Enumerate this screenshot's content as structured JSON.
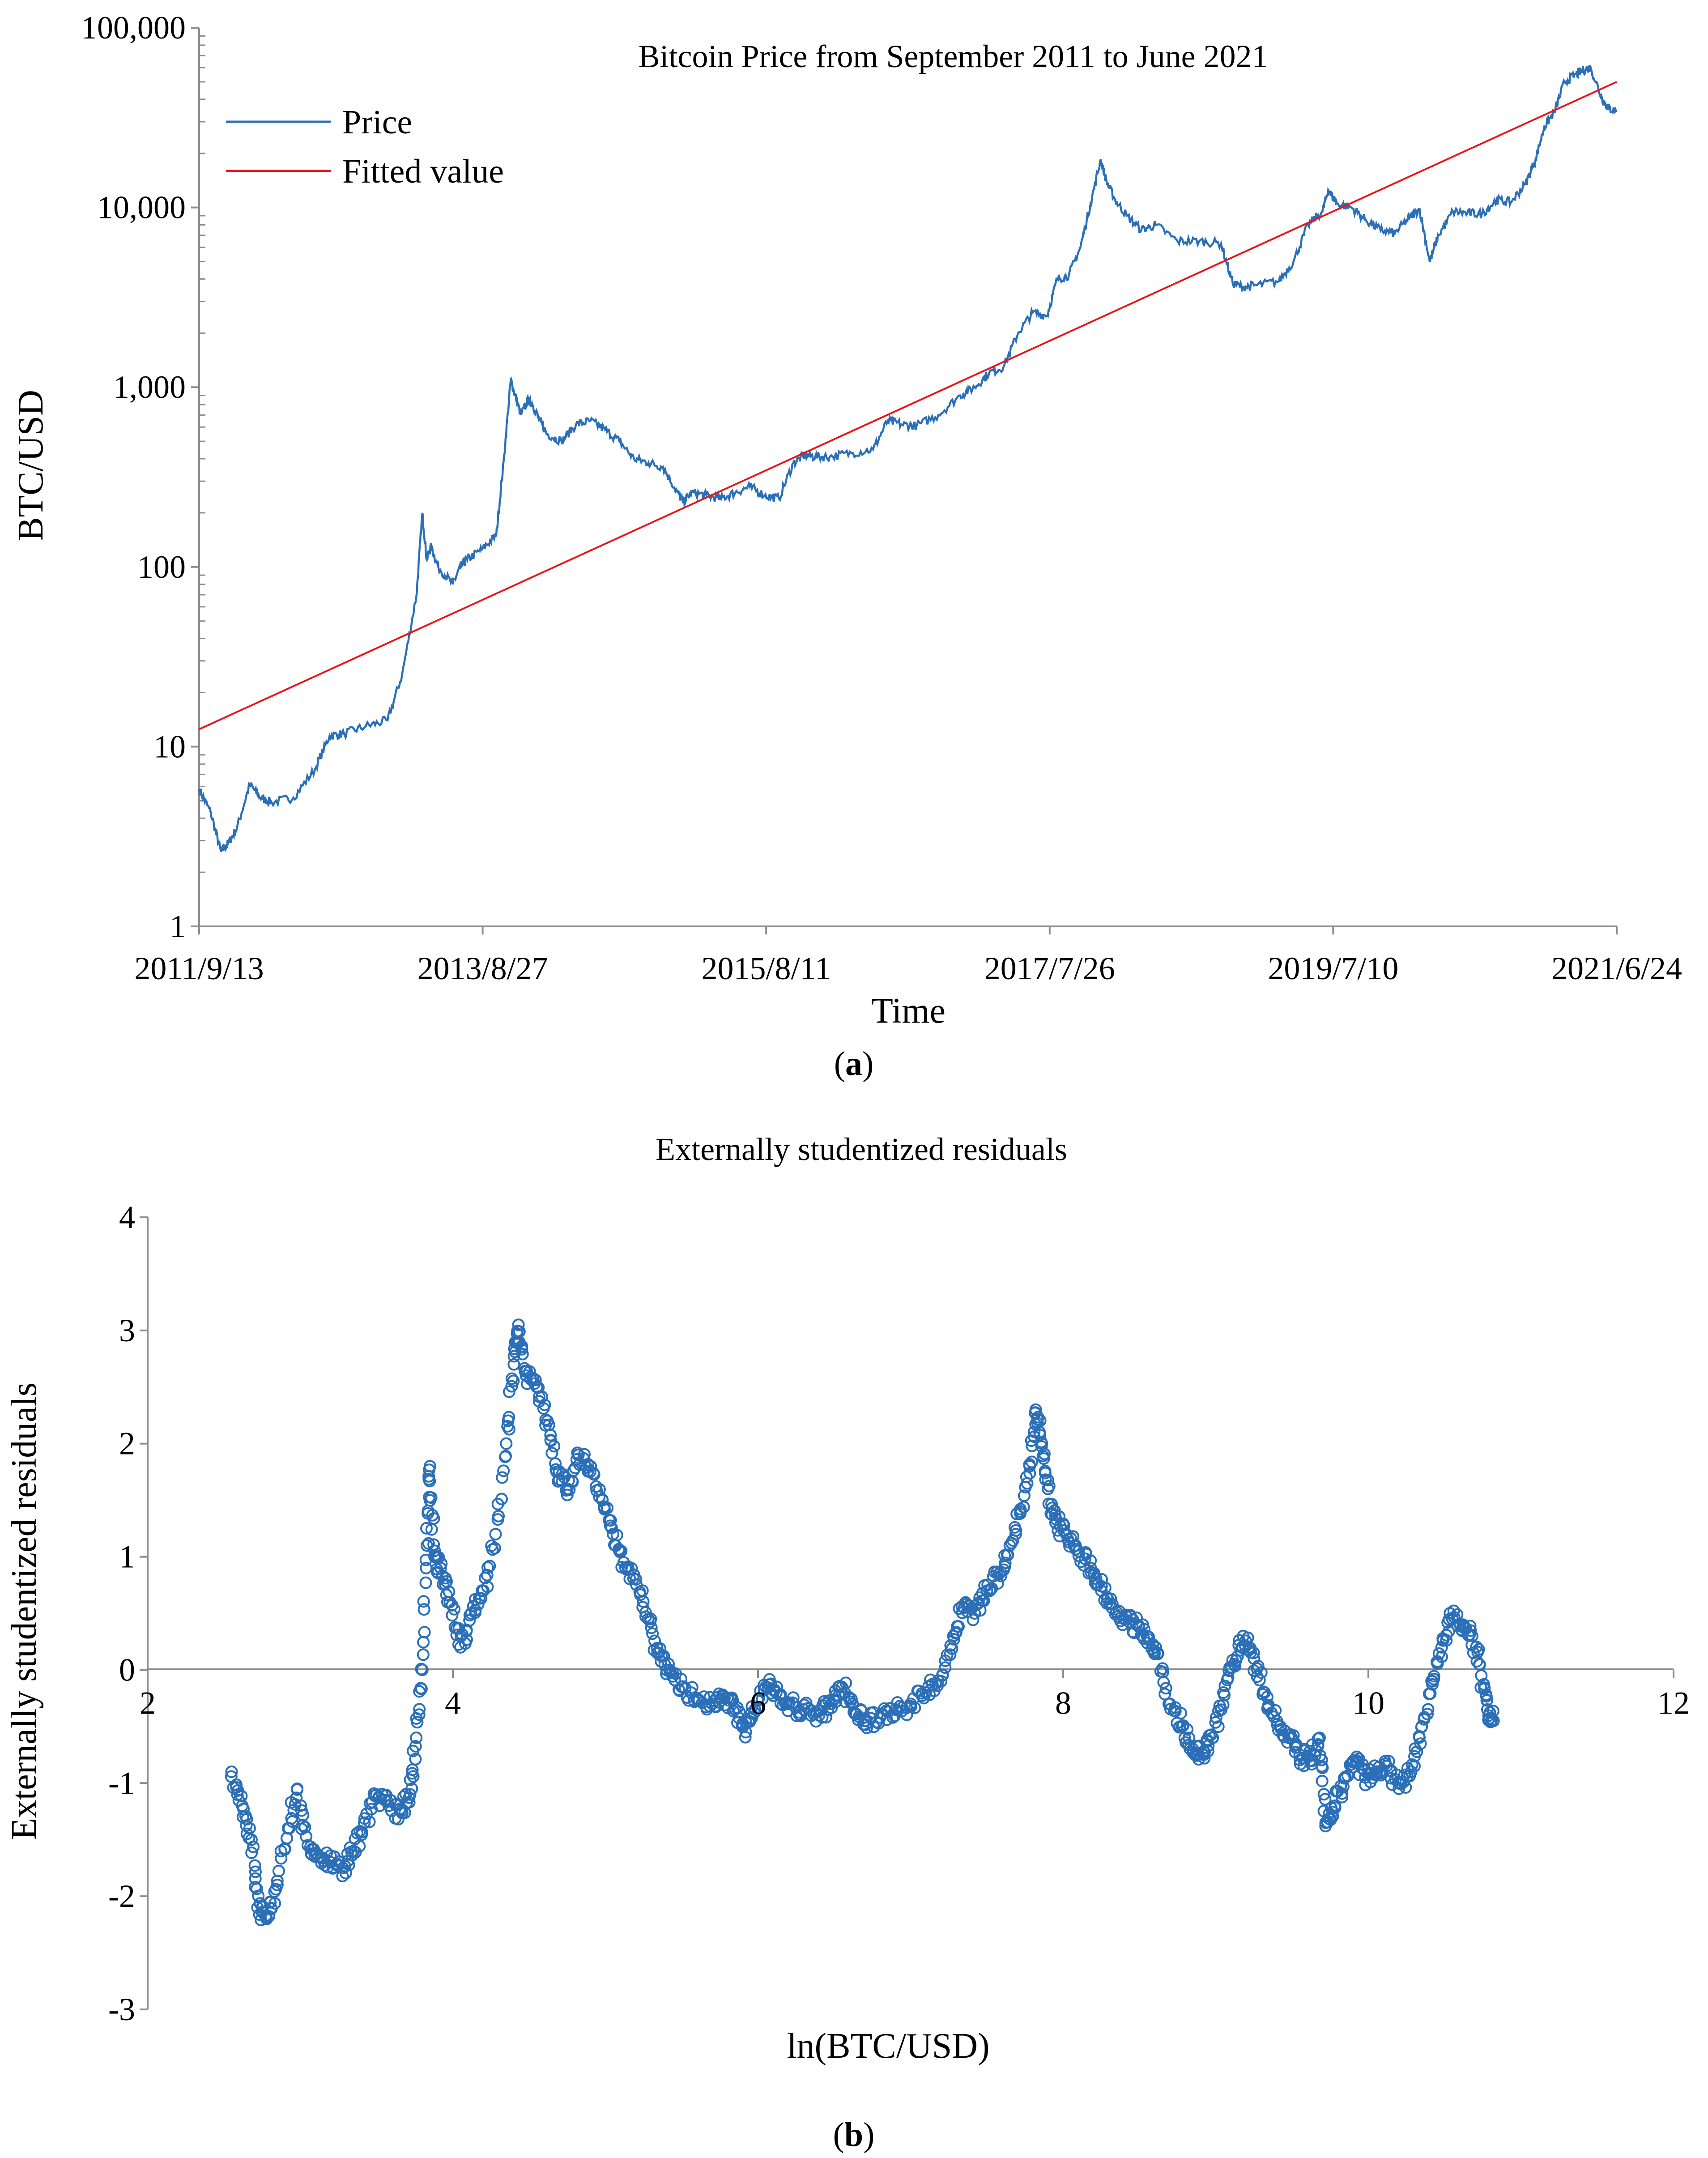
{
  "chart_data": [
    {
      "type": "line",
      "title": "Bitcoin Price from September 2011 to June 2021",
      "xlabel": "Time",
      "ylabel": "BTC/USD",
      "yscale": "log10",
      "ylim": [
        1,
        100000
      ],
      "y_ticks": [
        1,
        10,
        100,
        1000,
        10000,
        100000
      ],
      "y_tick_labels": [
        "1",
        "10",
        "100",
        "1,000",
        "10,000",
        "100,000"
      ],
      "x_range": [
        "2011-09-13",
        "2021-06-24"
      ],
      "x_tick_labels": [
        "2011/9/13",
        "2013/8/27",
        "2015/8/11",
        "2017/7/26",
        "2019/7/10",
        "2021/6/24"
      ],
      "legend": [
        "Price",
        "Fitted value"
      ],
      "legend_position": "top-left",
      "caption_letter": "a",
      "series": [
        {
          "name": "Price",
          "color": "#2a6fb7",
          "x_years": [
            2011.7,
            2011.78,
            2011.85,
            2011.9,
            2011.96,
            2012.05,
            2012.12,
            2012.2,
            2012.35,
            2012.5,
            2012.6,
            2012.7,
            2012.85,
            2013.0,
            2013.1,
            2013.2,
            2013.24,
            2013.27,
            2013.3,
            2013.35,
            2013.45,
            2013.5,
            2013.55,
            2013.65,
            2013.75,
            2013.8,
            2013.85,
            2013.88,
            2013.92,
            2013.97,
            2014.0,
            2014.05,
            2014.1,
            2014.2,
            2014.3,
            2014.4,
            2014.5,
            2014.6,
            2014.7,
            2014.8,
            2014.9,
            2015.0,
            2015.04,
            2015.1,
            2015.2,
            2015.3,
            2015.4,
            2015.5,
            2015.6,
            2015.7,
            2015.8,
            2015.88,
            2015.95,
            2016.05,
            2016.2,
            2016.35,
            2016.45,
            2016.55,
            2016.65,
            2016.8,
            2016.95,
            2017.05,
            2017.15,
            2017.25,
            2017.35,
            2017.45,
            2017.55,
            2017.62,
            2017.7,
            2017.78,
            2017.85,
            2017.92,
            2017.96,
            2018.02,
            2018.1,
            2018.2,
            2018.3,
            2018.45,
            2018.6,
            2018.75,
            2018.83,
            2018.9,
            2019.0,
            2019.15,
            2019.25,
            2019.35,
            2019.45,
            2019.49,
            2019.55,
            2019.65,
            2019.75,
            2019.85,
            2019.95,
            2020.05,
            2020.12,
            2020.19,
            2020.25,
            2020.35,
            2020.45,
            2020.55,
            2020.65,
            2020.75,
            2020.85,
            2020.92,
            2020.98,
            2021.05,
            2021.12,
            2021.2,
            2021.25,
            2021.3,
            2021.38,
            2021.42,
            2021.48
          ],
          "values": [
            5.8,
            4.3,
            2.6,
            2.9,
            3.5,
            6.2,
            5.2,
            4.9,
            5.2,
            7.5,
            11.5,
            11.8,
            13.0,
            14.0,
            25.0,
            70.0,
            200.0,
            110.0,
            130.0,
            100.0,
            80.0,
            100.0,
            110.0,
            125.0,
            150.0,
            380.0,
            1100.0,
            900.0,
            700.0,
            850.0,
            800.0,
            650.0,
            550.0,
            500.0,
            620.0,
            650.0,
            580.0,
            500.0,
            400.0,
            380.0,
            360.0,
            260.0,
            230.0,
            260.0,
            250.0,
            240.0,
            260.0,
            280.0,
            250.0,
            240.0,
            380.0,
            420.0,
            410.0,
            410.0,
            430.0,
            450.0,
            650.0,
            620.0,
            610.0,
            700.0,
            900.0,
            1000.0,
            1200.0,
            1300.0,
            2000.0,
            2600.0,
            2500.0,
            4000.0,
            4200.0,
            6000.0,
            10500.0,
            18500.0,
            14000.0,
            11000.0,
            9000.0,
            7500.0,
            8000.0,
            6500.0,
            6500.0,
            6300.0,
            3800.0,
            3600.0,
            3700.0,
            3900.0,
            5000.0,
            8000.0,
            9500.0,
            12500.0,
            10500.0,
            10000.0,
            8500.0,
            7500.0,
            7200.0,
            8800.0,
            9800.0,
            5000.0,
            7000.0,
            9500.0,
            9300.0,
            9200.0,
            11000.0,
            10700.0,
            13500.0,
            18500.0,
            28000.0,
            34000.0,
            50000.0,
            55000.0,
            58000.0,
            60000.0,
            40000.0,
            36000.0,
            34000.0
          ]
        },
        {
          "name": "Fitted value",
          "color": "#e8161b",
          "x_years": [
            2011.7,
            2021.48
          ],
          "values": [
            12.5,
            50000.0
          ]
        }
      ]
    },
    {
      "type": "scatter",
      "title": "Externally studentized residuals",
      "xlabel": "ln(BTC/USD)",
      "ylabel": "Externally studentized residuals",
      "xlim": [
        2,
        12
      ],
      "ylim": [
        -3,
        4
      ],
      "x_ticks": [
        2,
        4,
        6,
        8,
        10,
        12
      ],
      "y_ticks": [
        -3,
        -2,
        -1,
        0,
        1,
        2,
        3,
        4
      ],
      "caption_letter": "b",
      "series": [
        {
          "name": "Residuals",
          "color": "#2a6fb7",
          "points": [
            [
              2.55,
              -0.9
            ],
            [
              2.62,
              -1.2
            ],
            [
              2.68,
              -1.5
            ],
            [
              2.72,
              -2.1
            ],
            [
              2.78,
              -2.2
            ],
            [
              2.85,
              -1.9
            ],
            [
              2.92,
              -1.4
            ],
            [
              2.98,
              -1.05
            ],
            [
              3.05,
              -1.55
            ],
            [
              3.12,
              -1.65
            ],
            [
              3.2,
              -1.7
            ],
            [
              3.28,
              -1.75
            ],
            [
              3.35,
              -1.6
            ],
            [
              3.42,
              -1.35
            ],
            [
              3.5,
              -1.1
            ],
            [
              3.58,
              -1.2
            ],
            [
              3.66,
              -1.25
            ],
            [
              3.72,
              -1.1
            ],
            [
              3.76,
              -0.6
            ],
            [
              3.8,
              0.0
            ],
            [
              3.83,
              1.1
            ],
            [
              3.85,
              1.8
            ],
            [
              3.88,
              1.0
            ],
            [
              3.92,
              0.9
            ],
            [
              3.98,
              0.6
            ],
            [
              4.05,
              0.2
            ],
            [
              4.12,
              0.5
            ],
            [
              4.2,
              0.7
            ],
            [
              4.28,
              1.2
            ],
            [
              4.35,
              2.0
            ],
            [
              4.4,
              2.7
            ],
            [
              4.43,
              3.05
            ],
            [
              4.48,
              2.6
            ],
            [
              4.55,
              2.5
            ],
            [
              4.62,
              2.2
            ],
            [
              4.68,
              1.75
            ],
            [
              4.75,
              1.6
            ],
            [
              4.82,
              1.9
            ],
            [
              4.9,
              1.75
            ],
            [
              4.98,
              1.5
            ],
            [
              5.05,
              1.2
            ],
            [
              5.12,
              0.95
            ],
            [
              5.2,
              0.8
            ],
            [
              5.28,
              0.45
            ],
            [
              5.35,
              0.15
            ],
            [
              5.42,
              0.0
            ],
            [
              5.5,
              -0.15
            ],
            [
              5.6,
              -0.25
            ],
            [
              5.7,
              -0.3
            ],
            [
              5.78,
              -0.25
            ],
            [
              5.85,
              -0.35
            ],
            [
              5.92,
              -0.55
            ],
            [
              5.98,
              -0.35
            ],
            [
              6.05,
              -0.15
            ],
            [
              6.12,
              -0.2
            ],
            [
              6.2,
              -0.3
            ],
            [
              6.3,
              -0.35
            ],
            [
              6.4,
              -0.4
            ],
            [
              6.48,
              -0.3
            ],
            [
              6.55,
              -0.15
            ],
            [
              6.62,
              -0.3
            ],
            [
              6.7,
              -0.45
            ],
            [
              6.8,
              -0.42
            ],
            [
              6.9,
              -0.35
            ],
            [
              7.0,
              -0.3
            ],
            [
              7.1,
              -0.2
            ],
            [
              7.2,
              -0.1
            ],
            [
              7.28,
              0.3
            ],
            [
              7.35,
              0.55
            ],
            [
              7.42,
              0.5
            ],
            [
              7.5,
              0.7
            ],
            [
              7.58,
              0.85
            ],
            [
              7.65,
              1.1
            ],
            [
              7.72,
              1.4
            ],
            [
              7.78,
              1.8
            ],
            [
              7.82,
              2.3
            ],
            [
              7.86,
              2.0
            ],
            [
              7.9,
              1.6
            ],
            [
              7.95,
              1.3
            ],
            [
              8.02,
              1.2
            ],
            [
              8.1,
              1.05
            ],
            [
              8.18,
              0.9
            ],
            [
              8.25,
              0.7
            ],
            [
              8.32,
              0.55
            ],
            [
              8.4,
              0.45
            ],
            [
              8.48,
              0.4
            ],
            [
              8.55,
              0.3
            ],
            [
              8.62,
              0.15
            ],
            [
              8.7,
              -0.3
            ],
            [
              8.78,
              -0.5
            ],
            [
              8.85,
              -0.7
            ],
            [
              8.92,
              -0.72
            ],
            [
              8.98,
              -0.6
            ],
            [
              9.05,
              -0.2
            ],
            [
              9.12,
              0.05
            ],
            [
              9.18,
              0.3
            ],
            [
              9.25,
              0.1
            ],
            [
              9.32,
              -0.2
            ],
            [
              9.4,
              -0.45
            ],
            [
              9.48,
              -0.6
            ],
            [
              9.55,
              -0.75
            ],
            [
              9.62,
              -0.8
            ],
            [
              9.68,
              -0.6
            ],
            [
              9.72,
              -1.35
            ],
            [
              9.78,
              -1.2
            ],
            [
              9.85,
              -0.95
            ],
            [
              9.92,
              -0.8
            ],
            [
              9.98,
              -0.95
            ],
            [
              10.05,
              -0.9
            ],
            [
              10.12,
              -0.85
            ],
            [
              10.2,
              -1.05
            ],
            [
              10.28,
              -0.9
            ],
            [
              10.35,
              -0.5
            ],
            [
              10.42,
              -0.1
            ],
            [
              10.48,
              0.2
            ],
            [
              10.55,
              0.45
            ],
            [
              10.62,
              0.4
            ],
            [
              10.68,
              0.3
            ],
            [
              10.74,
              -0.05
            ],
            [
              10.78,
              -0.35
            ],
            [
              10.82,
              -0.45
            ]
          ]
        }
      ]
    }
  ]
}
